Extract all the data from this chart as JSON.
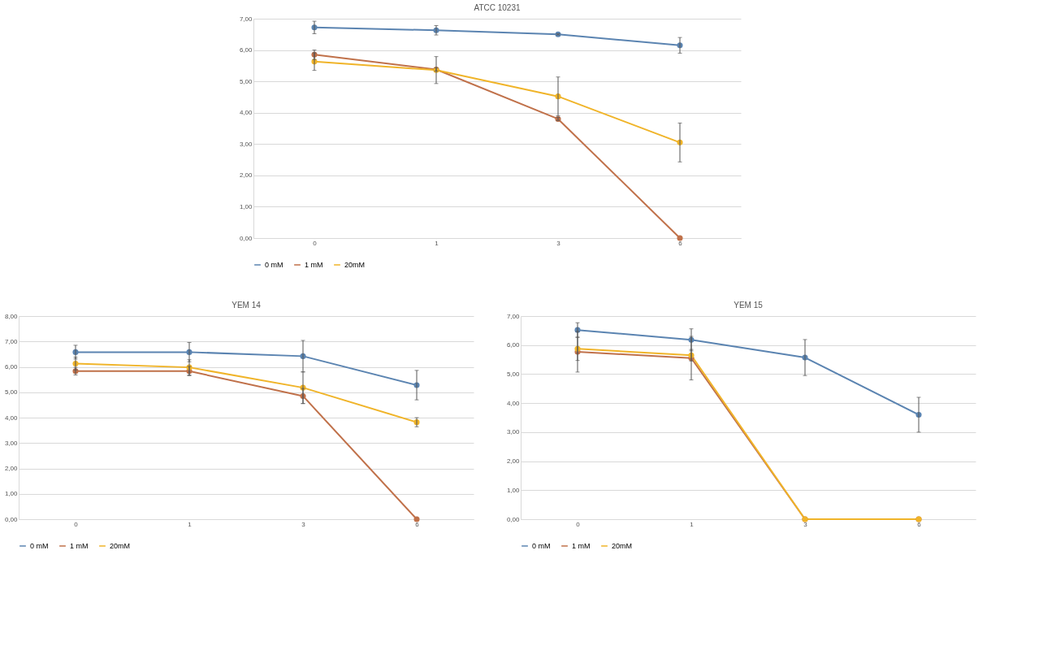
{
  "chart_data": [
    {
      "type": "line",
      "title": "ATCC 10231",
      "categories": [
        "0",
        "1",
        "3",
        "6"
      ],
      "ylim": [
        0,
        7
      ],
      "yticks": [
        {
          "value": 0,
          "label": "0,00"
        },
        {
          "value": 1,
          "label": "1,00"
        },
        {
          "value": 2,
          "label": "2,00"
        },
        {
          "value": 3,
          "label": "3,00"
        },
        {
          "value": 4,
          "label": "4,00"
        },
        {
          "value": 5,
          "label": "5,00"
        },
        {
          "value": 6,
          "label": "6,00"
        },
        {
          "value": 7,
          "label": "7,00"
        }
      ],
      "grid": "y",
      "legend": "bottom",
      "marker": "circle",
      "line_style": "solid",
      "series": [
        {
          "name": "0 mM",
          "color": "#5b84b1",
          "values": [
            6.72,
            6.63,
            6.5,
            6.15
          ],
          "errors": [
            0.2,
            0.15,
            0.02,
            0.25
          ]
        },
        {
          "name": "1 mM",
          "color": "#c0714a",
          "values": [
            5.85,
            5.38,
            3.8,
            0
          ],
          "errors": [
            0.15,
            0.05,
            0.05,
            null
          ]
        },
        {
          "name": "20mM",
          "color": "#f0b429",
          "values": [
            5.63,
            5.36,
            4.52,
            3.05
          ],
          "errors": [
            0.28,
            0.43,
            0.62,
            0.62
          ]
        }
      ]
    },
    {
      "type": "line",
      "title": "YEM 14",
      "categories": [
        "0",
        "1",
        "3",
        "6"
      ],
      "ylim": [
        0,
        8
      ],
      "yticks": [
        {
          "value": 0,
          "label": "0,00"
        },
        {
          "value": 1,
          "label": "1,00"
        },
        {
          "value": 2,
          "label": "2,00"
        },
        {
          "value": 3,
          "label": "3,00"
        },
        {
          "value": 4,
          "label": "4,00"
        },
        {
          "value": 5,
          "label": "5,00"
        },
        {
          "value": 6,
          "label": "6,00"
        },
        {
          "value": 7,
          "label": "7,00"
        },
        {
          "value": 8,
          "label": "8,00"
        }
      ],
      "grid": "y",
      "legend": "bottom",
      "marker": "circle",
      "line_style": "solid",
      "series": [
        {
          "name": "0 mM",
          "color": "#5b84b1",
          "values": [
            6.58,
            6.58,
            6.42,
            5.28
          ],
          "errors": [
            0.27,
            0.38,
            0.62,
            0.58
          ]
        },
        {
          "name": "1 mM",
          "color": "#c0714a",
          "values": [
            5.83,
            5.83,
            4.85,
            0
          ],
          "errors": [
            0.15,
            0.18,
            0.3,
            null
          ]
        },
        {
          "name": "20mM",
          "color": "#f0b429",
          "values": [
            6.13,
            5.98,
            5.18,
            3.82
          ],
          "errors": [
            0.25,
            0.3,
            0.62,
            0.18
          ]
        }
      ]
    },
    {
      "type": "line",
      "title": "YEM 15",
      "categories": [
        "0",
        "1",
        "3",
        "6"
      ],
      "ylim": [
        0,
        7
      ],
      "yticks": [
        {
          "value": 0,
          "label": "0,00"
        },
        {
          "value": 1,
          "label": "1,00"
        },
        {
          "value": 2,
          "label": "2,00"
        },
        {
          "value": 3,
          "label": "3,00"
        },
        {
          "value": 4,
          "label": "4,00"
        },
        {
          "value": 5,
          "label": "5,00"
        },
        {
          "value": 6,
          "label": "6,00"
        },
        {
          "value": 7,
          "label": "7,00"
        }
      ],
      "grid": "y",
      "legend": "bottom",
      "marker": "circle",
      "line_style": "solid",
      "series": [
        {
          "name": "0 mM",
          "color": "#5b84b1",
          "values": [
            6.52,
            6.18,
            5.57,
            3.6
          ],
          "errors": [
            0.25,
            0.38,
            0.62,
            0.6
          ]
        },
        {
          "name": "1 mM",
          "color": "#c0714a",
          "values": [
            5.77,
            5.55,
            0,
            0
          ],
          "errors": [
            0.7,
            0.75,
            null,
            null
          ]
        },
        {
          "name": "20mM",
          "color": "#f0b429",
          "values": [
            5.87,
            5.65,
            0,
            0
          ],
          "errors": [
            0.4,
            0.2,
            null,
            null
          ]
        }
      ]
    }
  ]
}
